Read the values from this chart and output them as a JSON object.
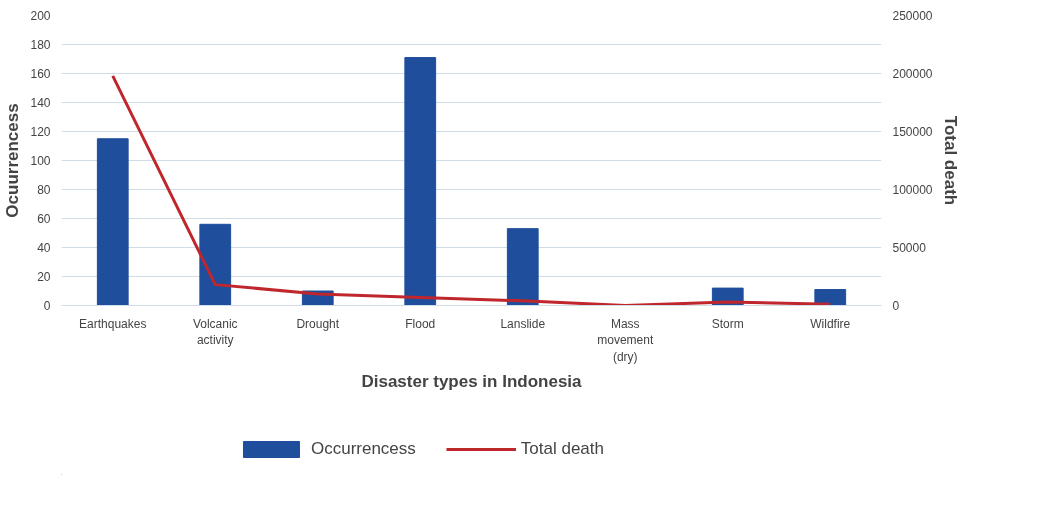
{
  "chart_data": {
    "type": "bar",
    "xlabel": "Disaster types in Indonesia",
    "ylabel": "Ocuurrencess",
    "y2label": "Total death",
    "categories": [
      "Earthquakes",
      "Volcanic\nactivity",
      "Drought",
      "Flood",
      "Lanslide",
      "Mass\nmovement\n(dry)",
      "Storm",
      "Wildfire"
    ],
    "series": [
      {
        "name": "Occurrencess",
        "color": "#1f4e9c",
        "values": [
          115,
          56,
          10,
          171,
          53,
          0,
          12,
          11
        ]
      },
      {
        "name": "Total death",
        "type": "line",
        "axis": "y2",
        "color": "#c0272d",
        "values": [
          198000,
          18000,
          10000,
          7000,
          4000,
          0,
          3000,
          1000
        ]
      }
    ],
    "ylim": [
      0,
      200
    ],
    "yticks": [
      0,
      20,
      40,
      60,
      80,
      100,
      120,
      140,
      160,
      180,
      200
    ],
    "y2lim": [
      0,
      250000
    ],
    "y2ticks": [
      0,
      50000,
      100000,
      150000,
      200000,
      250000
    ],
    "grid": "y",
    "legend": "bottom",
    "marker": "none",
    "line_style": "solid"
  }
}
